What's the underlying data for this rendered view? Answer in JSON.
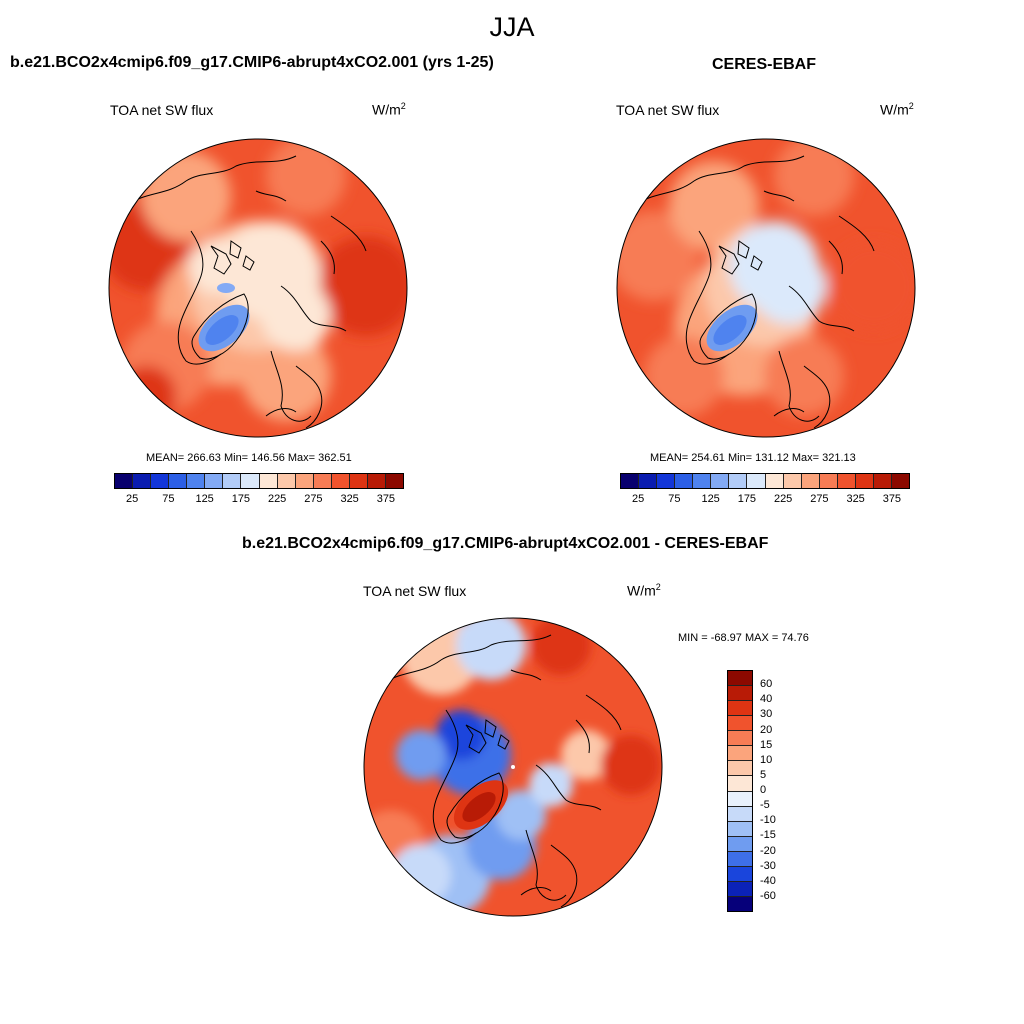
{
  "figure": {
    "title": "JJA"
  },
  "panels": [
    {
      "title": "b.e21.BCO2x4cmip6.f09_g17.CMIP6-abrupt4xCO2.001 (yrs 1-25)",
      "field": "TOA net SW flux",
      "units_base": "W/m",
      "units_exp": "2",
      "stats": "MEAN= 266.63  Min= 146.56  Max= 362.51"
    },
    {
      "title": "CERES-EBAF",
      "field": "TOA net SW flux",
      "units_base": "W/m",
      "units_exp": "2",
      "stats": "MEAN= 254.61  Min= 131.12  Max= 321.13"
    },
    {
      "title": "b.e21.BCO2x4cmip6.f09_g17.CMIP6-abrupt4xCO2.001 - CERES-EBAF",
      "field": "TOA net SW flux",
      "units_base": "W/m",
      "units_exp": "2",
      "stats": "MIN = -68.97 MAX =  74.76"
    }
  ],
  "abs_colorbar": {
    "colors": [
      "#08006e",
      "#0a1cb0",
      "#1336d8",
      "#2c5fe6",
      "#4f83ef",
      "#83aaf5",
      "#b2ccf8",
      "#dbe9fb",
      "#fde7d6",
      "#fcc8aa",
      "#fba47c",
      "#f77c55",
      "#f0532d",
      "#de3413",
      "#b81b06",
      "#8c0900"
    ],
    "labels": [
      "25",
      "75",
      "125",
      "175",
      "225",
      "275",
      "325",
      "375"
    ]
  },
  "diff_colorbar": {
    "colors": [
      "#8c0900",
      "#b81b06",
      "#de3413",
      "#f0532d",
      "#f77c55",
      "#fba47c",
      "#fcc8aa",
      "#fde7d6",
      "#e9f1fc",
      "#c7daf9",
      "#9fc0f5",
      "#6f9cf0",
      "#3e6fe8",
      "#1a45dc",
      "#0b22b8",
      "#06007a"
    ],
    "labels": [
      "60",
      "40",
      "30",
      "20",
      "15",
      "10",
      "5",
      "0",
      "-5",
      "-10",
      "-15",
      "-20",
      "-30",
      "-40",
      "-60"
    ]
  }
}
